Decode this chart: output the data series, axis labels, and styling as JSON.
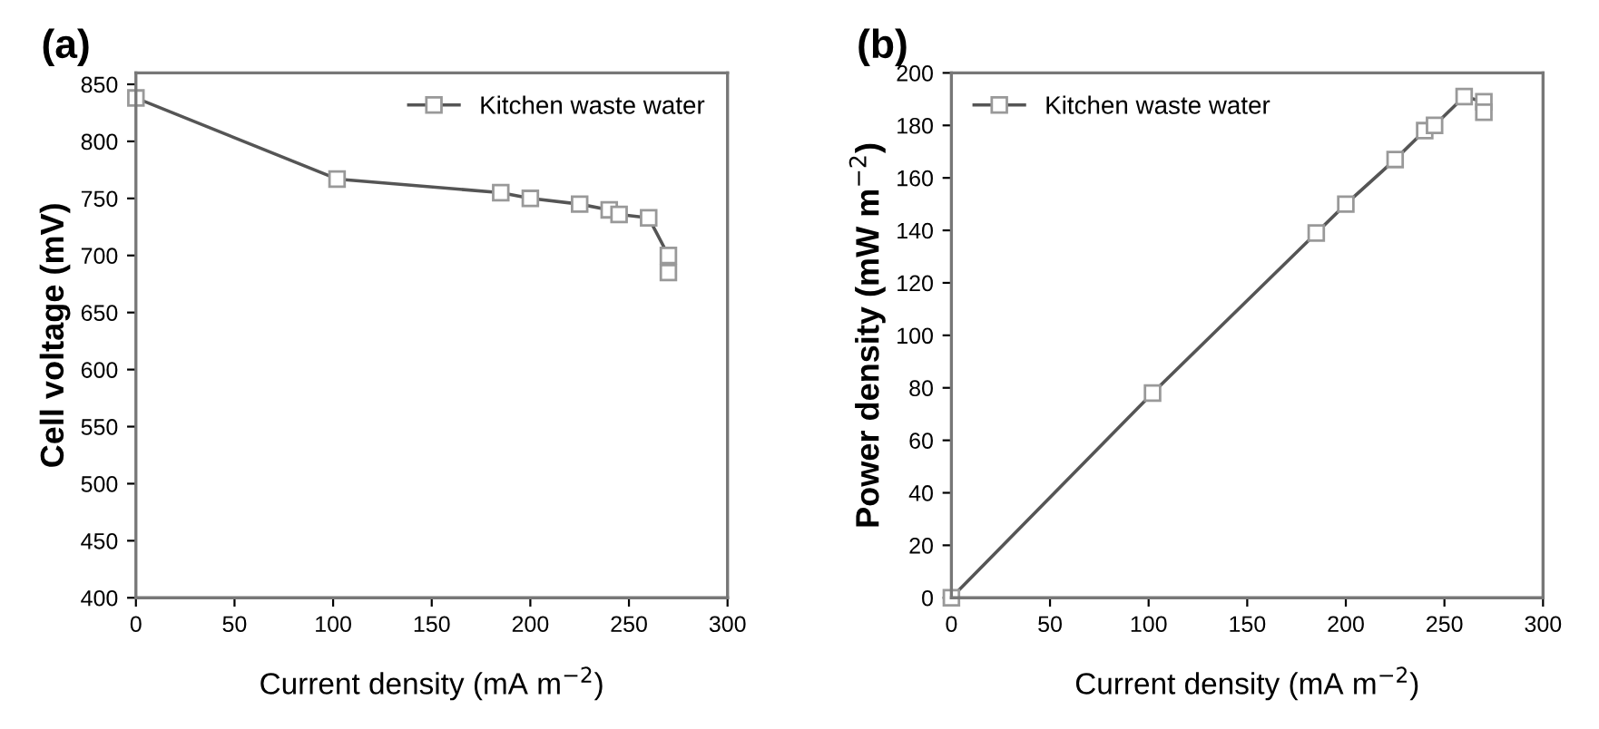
{
  "chart_data": [
    {
      "type": "line",
      "title": "(a)",
      "xlabel": "Current density (mA m$^{−2}$)",
      "ylabel": "Cell voltage (mV)",
      "xlim": [
        0,
        300
      ],
      "xticks": [
        0,
        50,
        100,
        150,
        200,
        250,
        300
      ],
      "ylim": [
        400,
        860
      ],
      "yticks": [
        400,
        450,
        500,
        550,
        600,
        650,
        700,
        750,
        800,
        850
      ],
      "legend": "top right",
      "marker": "square",
      "line_style": "solid",
      "grid": false,
      "series": [
        {
          "name": "Kitchen waste water",
          "color": "#555555",
          "x": [
            0,
            102,
            185,
            200,
            225,
            240,
            245,
            260,
            270,
            270
          ],
          "values": [
            838,
            767,
            755,
            750,
            745,
            740,
            736,
            733,
            700,
            685
          ]
        }
      ]
    },
    {
      "type": "line",
      "title": "(b)",
      "xlabel": "Current density (mA m$^{−2}$)",
      "ylabel": "Power density (mW m$^{−2}$)",
      "xlim": [
        0,
        300
      ],
      "xticks": [
        0,
        50,
        100,
        150,
        200,
        250,
        300
      ],
      "ylim": [
        0,
        200
      ],
      "yticks": [
        0,
        20,
        40,
        60,
        80,
        100,
        120,
        140,
        160,
        180,
        200
      ],
      "legend": "top left",
      "marker": "square",
      "line_style": "solid",
      "grid": false,
      "series": [
        {
          "name": "Kitchen waste water",
          "color": "#555555",
          "x": [
            0,
            102,
            185,
            200,
            225,
            240,
            245,
            260,
            270,
            270
          ],
          "values": [
            0,
            78,
            139,
            150,
            167,
            178,
            180,
            191,
            189,
            185
          ]
        }
      ]
    }
  ]
}
